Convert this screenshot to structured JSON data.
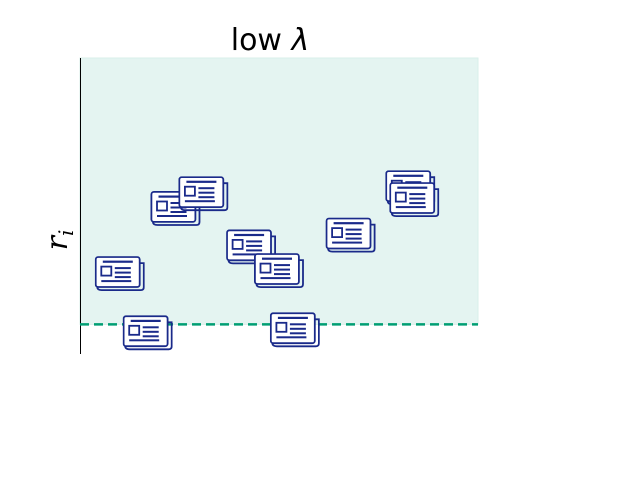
{
  "title": {
    "prefix": "low ",
    "symbol": "λ"
  },
  "ylabel": {
    "base": "r",
    "subscript": "i"
  },
  "colors": {
    "region_fill": "#e4f4f1",
    "region_border": "#d9efea",
    "threshold_line": "#009e73",
    "icon_stroke": "#1a2a8a",
    "axis": "#000000"
  },
  "icon_name": "newspaper-icon",
  "chart_data": {
    "type": "scatter",
    "marker": "newspaper-icon",
    "title": "low λ",
    "xlabel": "",
    "ylabel": "r_i",
    "xlim": [
      0,
      1
    ],
    "ylim": [
      0,
      1
    ],
    "threshold": 0.1,
    "region_above_threshold": true,
    "points": [
      {
        "x": 0.1,
        "y": 0.27
      },
      {
        "x": 0.17,
        "y": 0.07
      },
      {
        "x": 0.24,
        "y": 0.49
      },
      {
        "x": 0.31,
        "y": 0.54
      },
      {
        "x": 0.43,
        "y": 0.36
      },
      {
        "x": 0.5,
        "y": 0.28
      },
      {
        "x": 0.54,
        "y": 0.08
      },
      {
        "x": 0.68,
        "y": 0.4
      },
      {
        "x": 0.83,
        "y": 0.56
      },
      {
        "x": 0.84,
        "y": 0.52
      }
    ]
  }
}
